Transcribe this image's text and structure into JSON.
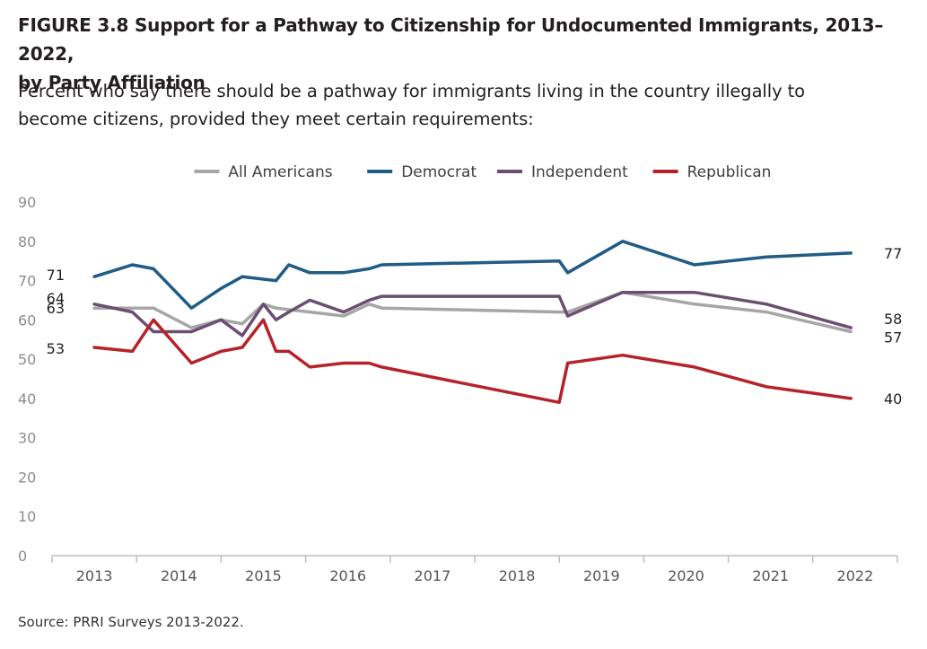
{
  "figure": {
    "title_line1": "FIGURE 3.8  Support for a Pathway to Citizenship for Undocumented Immigrants, 2013–2022,",
    "title_line2": "by Party Affiliation",
    "subtitle_line1": "Percent who say there should be a pathway for immigrants living in the country illegally to",
    "subtitle_line2": "become citizens, provided they meet certain requirements:",
    "source": "Source: PRRI Surveys 2013-2022."
  },
  "chart_data": {
    "type": "line",
    "ylim": [
      0,
      90
    ],
    "yticks": [
      0,
      10,
      20,
      30,
      40,
      50,
      60,
      70,
      80,
      90
    ],
    "xticks": [
      "2013",
      "2014",
      "2015",
      "2016",
      "2017",
      "2018",
      "2019",
      "2020",
      "2021",
      "2022"
    ],
    "grid": false,
    "legend_position": "top",
    "series": [
      {
        "name": "All Americans",
        "color": "#a6a6a6",
        "x": [
          2013.0,
          2013.45,
          2013.7,
          2014.15,
          2014.5,
          2014.75,
          2015.0,
          2015.15,
          2015.55,
          2015.95,
          2016.25,
          2016.4,
          2018.5,
          2018.6,
          2019.25,
          2020.1,
          2020.95,
          2021.95
        ],
        "values": [
          63,
          63,
          63,
          58,
          60,
          59,
          64,
          63,
          62,
          61,
          64,
          63,
          62,
          62,
          67,
          64,
          62,
          57
        ],
        "start_label": "63",
        "end_label": "57"
      },
      {
        "name": "Democrat",
        "color": "#1f5c87",
        "x": [
          2013.0,
          2013.45,
          2013.7,
          2014.15,
          2014.5,
          2014.75,
          2015.15,
          2015.3,
          2015.55,
          2015.95,
          2016.25,
          2016.4,
          2018.5,
          2018.6,
          2019.25,
          2020.1,
          2020.95,
          2021.95
        ],
        "values": [
          71,
          74,
          73,
          63,
          68,
          71,
          70,
          74,
          72,
          72,
          73,
          74,
          75,
          72,
          80,
          74,
          76,
          77
        ],
        "start_label": "71",
        "end_label": "77"
      },
      {
        "name": "Independent",
        "color": "#6b4e71",
        "x": [
          2013.0,
          2013.45,
          2013.7,
          2014.15,
          2014.5,
          2014.75,
          2015.0,
          2015.15,
          2015.3,
          2015.55,
          2015.95,
          2016.25,
          2016.4,
          2018.5,
          2018.6,
          2019.25,
          2020.1,
          2020.95,
          2021.95
        ],
        "values": [
          64,
          62,
          57,
          57,
          60,
          56,
          64,
          60,
          62,
          65,
          62,
          65,
          66,
          66,
          61,
          67,
          67,
          64,
          58
        ],
        "start_label": "64",
        "end_label": "58"
      },
      {
        "name": "Republican",
        "color": "#b5232a",
        "x": [
          2013.0,
          2013.45,
          2013.7,
          2014.15,
          2014.5,
          2014.75,
          2015.0,
          2015.15,
          2015.3,
          2015.55,
          2015.95,
          2016.25,
          2016.4,
          2018.5,
          2018.6,
          2019.25,
          2020.1,
          2020.95,
          2021.95
        ],
        "values": [
          53,
          52,
          60,
          49,
          52,
          53,
          60,
          52,
          52,
          48,
          49,
          49,
          48,
          39,
          49,
          51,
          48,
          43,
          40
        ],
        "start_label": "53",
        "end_label": "40"
      }
    ]
  }
}
